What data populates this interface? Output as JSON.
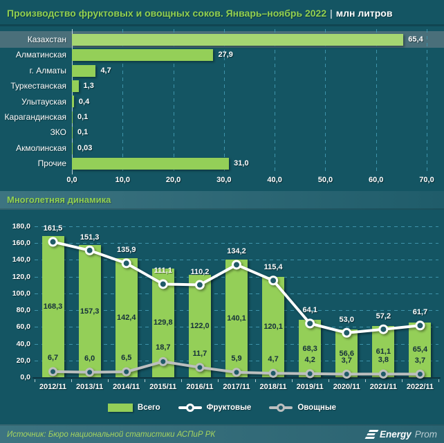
{
  "header": {
    "title_main": "Производство фруктовых и овощных соков. Январь–ноябрь 2022",
    "separator": "|",
    "title_units": "млн литров"
  },
  "sections": {
    "dynamics_title": "Многолетняя динамика"
  },
  "footer": {
    "source": "Источник: Бюро национальной статистики АСПиР РК",
    "logo_text_bold": "Energy",
    "logo_text_light": "Prom"
  },
  "colors": {
    "background": "#145563",
    "band": "#3d7481",
    "accent_green": "#92d050",
    "bar_green": "#94cf58",
    "bar_green_highlight": "#a6d672",
    "highlight_row_band": "#4a6f7a",
    "fruit_line": "#ffffff",
    "veg_line": "#bcbfbf",
    "marker_fill": "#205a68",
    "grid": "#3e94ab",
    "dark_label": "#142f3a"
  },
  "chart_data": [
    {
      "type": "bar",
      "orientation": "horizontal",
      "title": "Производство фруктовых и овощных соков. Январь–ноябрь 2022, млн литров",
      "xlabel": "",
      "ylabel": "",
      "categories": [
        "Казахстан",
        "Алматинская",
        "г. Алматы",
        "Туркестанская",
        "Улытауская",
        "Карагандинская",
        "ЗКО",
        "Акмолинская",
        "Прочие"
      ],
      "values": [
        65.4,
        27.9,
        4.7,
        1.3,
        0.4,
        0.1,
        0.1,
        0.03,
        31.0
      ],
      "labels": [
        "65,4",
        "27,9",
        "4,7",
        "1,3",
        "0,4",
        "0,1",
        "0,1",
        "0,03",
        "31,0"
      ],
      "xlim": [
        0,
        70
      ],
      "xticks": [
        "0,0",
        "10,0",
        "20,0",
        "30,0",
        "40,0",
        "50,0",
        "60,0",
        "70,0"
      ],
      "grid": "dashed-vertical",
      "highlight_index": 0
    },
    {
      "type": "bar+line",
      "title": "Многолетняя динамика",
      "xlabel": "",
      "ylabel": "",
      "categories": [
        "2012/11",
        "2013/11",
        "2014/11",
        "2015/11",
        "2016/11",
        "2017/11",
        "2018/11",
        "2019/11",
        "2020/11",
        "2021/11",
        "2022/11"
      ],
      "series": [
        {
          "name": "Всего",
          "type": "bar",
          "values": [
            168.3,
            157.3,
            142.4,
            129.8,
            122.0,
            140.1,
            120.1,
            68.3,
            56.6,
            61.1,
            65.4
          ],
          "labels": [
            "168,3",
            "157,3",
            "142,4",
            "129,8",
            "122,0",
            "140,1",
            "120,1",
            "68,3",
            "56,6",
            "61,1",
            "65,4"
          ]
        },
        {
          "name": "Фруктовые",
          "type": "line",
          "values": [
            161.5,
            151.3,
            135.9,
            111.1,
            110.2,
            134.2,
            115.4,
            64.1,
            53.0,
            57.2,
            61.7
          ],
          "labels": [
            "161,5",
            "151,3",
            "135,9",
            "111,1",
            "110,2",
            "134,2",
            "115,4",
            "64,1",
            "53,0",
            "57,2",
            "61,7"
          ]
        },
        {
          "name": "Овощные",
          "type": "line",
          "values": [
            6.7,
            6.0,
            6.5,
            18.7,
            11.7,
            5.9,
            4.7,
            4.2,
            3.7,
            3.8,
            3.7
          ],
          "labels": [
            "6,7",
            "6,0",
            "6,5",
            "18,7",
            "11,7",
            "5,9",
            "4,7",
            "4,2",
            "3,7",
            "3,8",
            "3,7"
          ]
        }
      ],
      "ylim": [
        0,
        180
      ],
      "yticks": [
        "0,0",
        "20,0",
        "40,0",
        "60,0",
        "80,0",
        "100,0",
        "120,0",
        "140,0",
        "160,0",
        "180,0"
      ],
      "grid": "dashed-horizontal",
      "legend_position": "bottom"
    }
  ]
}
